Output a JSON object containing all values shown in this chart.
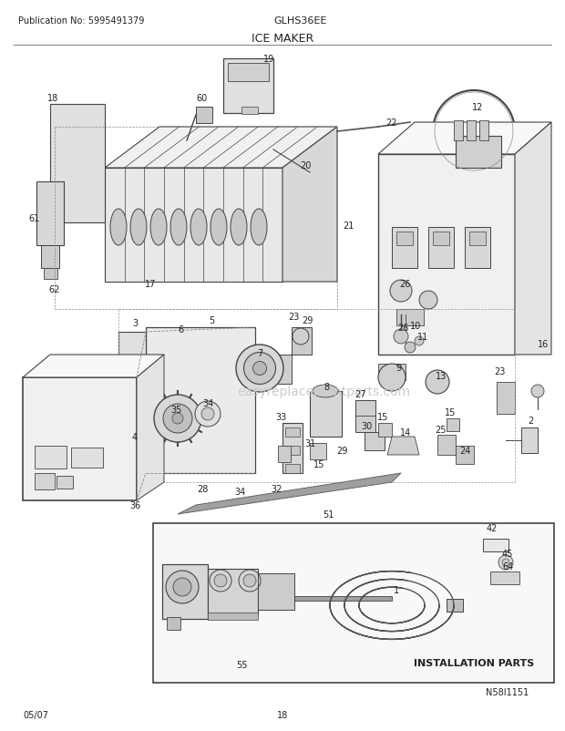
{
  "pub_no": "Publication No: 5995491379",
  "model": "GLHS36EE",
  "title": "ICE MAKER",
  "bottom_left": "05/07",
  "bottom_center": "18",
  "bottom_right": "N58I1151",
  "bg_color": "#ffffff",
  "text_color": "#222222",
  "line_color": "#444444",
  "gray1": "#dddddd",
  "gray2": "#bbbbbb",
  "gray3": "#999999",
  "fig_width": 6.2,
  "fig_height": 8.03,
  "dpi": 100
}
